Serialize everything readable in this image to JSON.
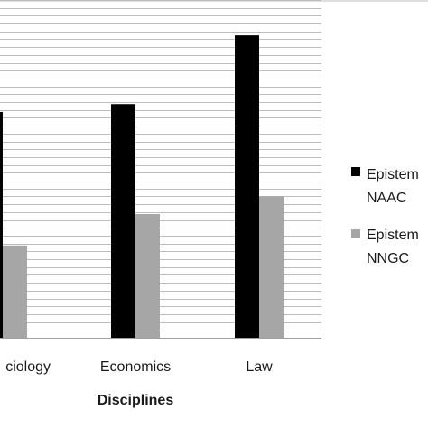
{
  "chart_data": {
    "type": "bar",
    "title": "",
    "xlabel": "Disciplines",
    "ylabel": "",
    "categories": [
      "ciology",
      "Economics",
      "Law"
    ],
    "series": [
      {
        "name": "Epistem NAAC",
        "legend_line1": "Epistem",
        "legend_line2": "NAAC",
        "color": "#000000",
        "values": [
          57.5,
          59.5,
          77
        ]
      },
      {
        "name": "Epistem NNGC",
        "legend_line1": "Epistem",
        "legend_line2": "NNGC",
        "color": "#a6a6a6",
        "values": [
          23.5,
          31.5,
          36
        ]
      }
    ],
    "ylim": [
      0,
      86
    ],
    "grid": true,
    "grid_step": 2,
    "legend_position": "right"
  }
}
